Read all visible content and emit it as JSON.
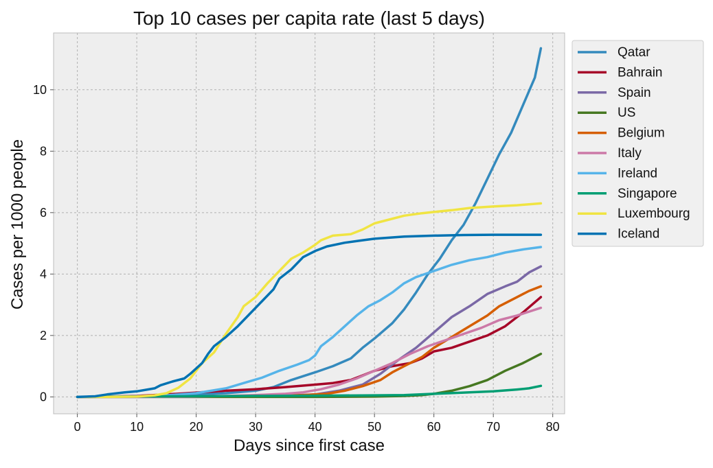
{
  "chart_data": {
    "type": "line",
    "title": "Top 10 cases per capita rate (last 5 days)",
    "xlabel": "Days since first case",
    "ylabel": "Cases per 1000 people",
    "xlim": [
      -4,
      82
    ],
    "ylim": [
      -0.55,
      11.85
    ],
    "xticks": [
      0,
      10,
      20,
      30,
      40,
      50,
      60,
      70,
      80
    ],
    "yticks": [
      0,
      2,
      4,
      6,
      8,
      10
    ],
    "grid": true,
    "legend_position": "outside-top-right",
    "series": [
      {
        "name": "Qatar",
        "color": "#348ABD",
        "points": [
          [
            0,
            0
          ],
          [
            5,
            0.01
          ],
          [
            10,
            0.02
          ],
          [
            15,
            0.04
          ],
          [
            20,
            0.08
          ],
          [
            25,
            0.12
          ],
          [
            30,
            0.2
          ],
          [
            33,
            0.32
          ],
          [
            36,
            0.55
          ],
          [
            40,
            0.8
          ],
          [
            43,
            1.0
          ],
          [
            46,
            1.25
          ],
          [
            48,
            1.6
          ],
          [
            50,
            1.9
          ],
          [
            53,
            2.4
          ],
          [
            55,
            2.85
          ],
          [
            57,
            3.4
          ],
          [
            59,
            4.0
          ],
          [
            61,
            4.5
          ],
          [
            63,
            5.1
          ],
          [
            65,
            5.6
          ],
          [
            67,
            6.3
          ],
          [
            69,
            7.1
          ],
          [
            71,
            7.9
          ],
          [
            73,
            8.6
          ],
          [
            75,
            9.5
          ],
          [
            77,
            10.4
          ],
          [
            78,
            11.35
          ]
        ]
      },
      {
        "name": "Bahrain",
        "color": "#A60628",
        "points": [
          [
            0,
            0
          ],
          [
            5,
            0.01
          ],
          [
            10,
            0.03
          ],
          [
            15,
            0.08
          ],
          [
            20,
            0.14
          ],
          [
            25,
            0.2
          ],
          [
            30,
            0.25
          ],
          [
            35,
            0.32
          ],
          [
            40,
            0.4
          ],
          [
            43,
            0.45
          ],
          [
            46,
            0.55
          ],
          [
            48,
            0.7
          ],
          [
            50,
            0.85
          ],
          [
            53,
            1.0
          ],
          [
            56,
            1.1
          ],
          [
            58,
            1.25
          ],
          [
            60,
            1.48
          ],
          [
            63,
            1.6
          ],
          [
            66,
            1.8
          ],
          [
            69,
            2.0
          ],
          [
            72,
            2.3
          ],
          [
            75,
            2.75
          ],
          [
            78,
            3.25
          ]
        ]
      },
      {
        "name": "Spain",
        "color": "#7A68A6",
        "points": [
          [
            0,
            0
          ],
          [
            10,
            0.0
          ],
          [
            20,
            0.0
          ],
          [
            25,
            0.01
          ],
          [
            30,
            0.02
          ],
          [
            35,
            0.04
          ],
          [
            40,
            0.08
          ],
          [
            44,
            0.2
          ],
          [
            48,
            0.4
          ],
          [
            51,
            0.75
          ],
          [
            54,
            1.2
          ],
          [
            57,
            1.6
          ],
          [
            60,
            2.1
          ],
          [
            63,
            2.6
          ],
          [
            66,
            2.95
          ],
          [
            69,
            3.35
          ],
          [
            72,
            3.6
          ],
          [
            74,
            3.75
          ],
          [
            76,
            4.05
          ],
          [
            78,
            4.25
          ]
        ]
      },
      {
        "name": "US",
        "color": "#467821",
        "points": [
          [
            0,
            0
          ],
          [
            20,
            0.0
          ],
          [
            40,
            0.0
          ],
          [
            50,
            0.01
          ],
          [
            55,
            0.03
          ],
          [
            58,
            0.06
          ],
          [
            60,
            0.1
          ],
          [
            63,
            0.2
          ],
          [
            66,
            0.35
          ],
          [
            69,
            0.55
          ],
          [
            72,
            0.85
          ],
          [
            75,
            1.1
          ],
          [
            78,
            1.4
          ]
        ]
      },
      {
        "name": "Belgium",
        "color": "#D55E00",
        "points": [
          [
            0,
            0
          ],
          [
            20,
            0.01
          ],
          [
            30,
            0.03
          ],
          [
            38,
            0.06
          ],
          [
            42,
            0.1
          ],
          [
            45,
            0.2
          ],
          [
            48,
            0.35
          ],
          [
            51,
            0.55
          ],
          [
            53,
            0.8
          ],
          [
            55,
            1.0
          ],
          [
            58,
            1.3
          ],
          [
            60,
            1.6
          ],
          [
            63,
            1.95
          ],
          [
            66,
            2.3
          ],
          [
            69,
            2.65
          ],
          [
            71,
            2.95
          ],
          [
            74,
            3.25
          ],
          [
            76,
            3.45
          ],
          [
            78,
            3.6
          ]
        ]
      },
      {
        "name": "Italy",
        "color": "#CC79A7",
        "points": [
          [
            0,
            0
          ],
          [
            10,
            0.0
          ],
          [
            20,
            0.01
          ],
          [
            25,
            0.03
          ],
          [
            30,
            0.06
          ],
          [
            35,
            0.1
          ],
          [
            38,
            0.15
          ],
          [
            41,
            0.25
          ],
          [
            44,
            0.4
          ],
          [
            47,
            0.6
          ],
          [
            50,
            0.85
          ],
          [
            53,
            1.1
          ],
          [
            56,
            1.4
          ],
          [
            59,
            1.65
          ],
          [
            62,
            1.85
          ],
          [
            65,
            2.05
          ],
          [
            68,
            2.25
          ],
          [
            71,
            2.5
          ],
          [
            74,
            2.65
          ],
          [
            78,
            2.9
          ]
        ]
      },
      {
        "name": "Ireland",
        "color": "#56B4E9",
        "points": [
          [
            0,
            0
          ],
          [
            10,
            0.02
          ],
          [
            15,
            0.05
          ],
          [
            20,
            0.12
          ],
          [
            25,
            0.28
          ],
          [
            28,
            0.45
          ],
          [
            31,
            0.62
          ],
          [
            34,
            0.85
          ],
          [
            37,
            1.05
          ],
          [
            39,
            1.2
          ],
          [
            40,
            1.35
          ],
          [
            41,
            1.65
          ],
          [
            43,
            1.95
          ],
          [
            45,
            2.3
          ],
          [
            47,
            2.65
          ],
          [
            49,
            2.95
          ],
          [
            51,
            3.15
          ],
          [
            53,
            3.4
          ],
          [
            55,
            3.7
          ],
          [
            57,
            3.9
          ],
          [
            60,
            4.1
          ],
          [
            63,
            4.3
          ],
          [
            66,
            4.45
          ],
          [
            69,
            4.55
          ],
          [
            72,
            4.7
          ],
          [
            75,
            4.8
          ],
          [
            78,
            4.88
          ]
        ]
      },
      {
        "name": "Singapore",
        "color": "#009E73",
        "points": [
          [
            0,
            0
          ],
          [
            10,
            0.01
          ],
          [
            20,
            0.02
          ],
          [
            30,
            0.03
          ],
          [
            40,
            0.04
          ],
          [
            50,
            0.05
          ],
          [
            55,
            0.06
          ],
          [
            60,
            0.1
          ],
          [
            65,
            0.14
          ],
          [
            70,
            0.18
          ],
          [
            74,
            0.24
          ],
          [
            76,
            0.28
          ],
          [
            78,
            0.36
          ]
        ]
      },
      {
        "name": "Luxembourg",
        "color": "#F0E442",
        "points": [
          [
            0,
            0
          ],
          [
            5,
            0.0
          ],
          [
            10,
            0.01
          ],
          [
            13,
            0.05
          ],
          [
            15,
            0.12
          ],
          [
            17,
            0.3
          ],
          [
            19,
            0.6
          ],
          [
            21,
            1.1
          ],
          [
            23,
            1.45
          ],
          [
            25,
            2.05
          ],
          [
            27,
            2.6
          ],
          [
            28,
            2.95
          ],
          [
            30,
            3.25
          ],
          [
            32,
            3.7
          ],
          [
            34,
            4.1
          ],
          [
            36,
            4.5
          ],
          [
            38,
            4.7
          ],
          [
            40,
            4.95
          ],
          [
            41,
            5.1
          ],
          [
            43,
            5.25
          ],
          [
            46,
            5.3
          ],
          [
            48,
            5.45
          ],
          [
            50,
            5.65
          ],
          [
            52,
            5.75
          ],
          [
            55,
            5.9
          ],
          [
            58,
            5.98
          ],
          [
            60,
            6.02
          ],
          [
            63,
            6.08
          ],
          [
            66,
            6.15
          ],
          [
            70,
            6.2
          ],
          [
            74,
            6.24
          ],
          [
            78,
            6.3
          ]
        ]
      },
      {
        "name": "Iceland",
        "color": "#0072B2",
        "points": [
          [
            0,
            0
          ],
          [
            3,
            0.02
          ],
          [
            5,
            0.08
          ],
          [
            8,
            0.15
          ],
          [
            10,
            0.18
          ],
          [
            13,
            0.28
          ],
          [
            14,
            0.38
          ],
          [
            16,
            0.5
          ],
          [
            18,
            0.6
          ],
          [
            19,
            0.75
          ],
          [
            21,
            1.1
          ],
          [
            22,
            1.4
          ],
          [
            23,
            1.65
          ],
          [
            25,
            1.95
          ],
          [
            27,
            2.3
          ],
          [
            29,
            2.7
          ],
          [
            31,
            3.1
          ],
          [
            33,
            3.5
          ],
          [
            34,
            3.85
          ],
          [
            36,
            4.15
          ],
          [
            38,
            4.55
          ],
          [
            40,
            4.75
          ],
          [
            42,
            4.9
          ],
          [
            45,
            5.02
          ],
          [
            48,
            5.1
          ],
          [
            50,
            5.15
          ],
          [
            55,
            5.22
          ],
          [
            60,
            5.25
          ],
          [
            65,
            5.27
          ],
          [
            70,
            5.28
          ],
          [
            78,
            5.28
          ]
        ]
      }
    ]
  }
}
